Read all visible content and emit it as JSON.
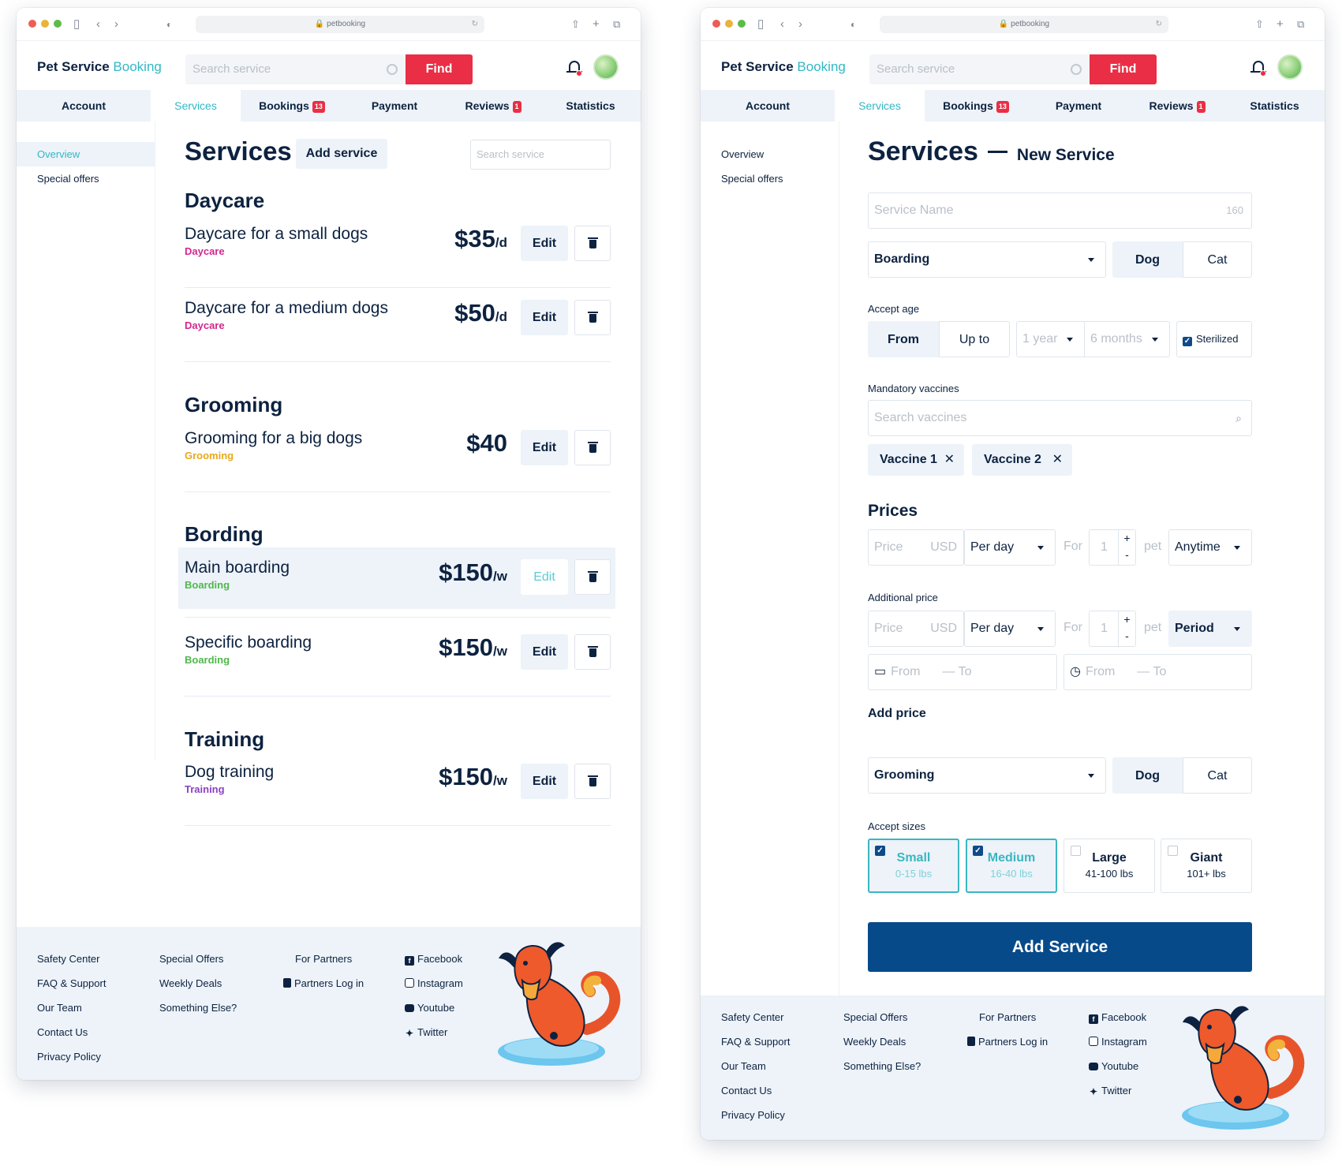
{
  "browser": {
    "url": "petbooking"
  },
  "header": {
    "brand_main": "Pet Service",
    "brand_accent": "Booking",
    "search_placeholder": "Search service",
    "find_label": "Find"
  },
  "tabs": [
    {
      "label": "Account"
    },
    {
      "label": "Services"
    },
    {
      "label": "Bookings",
      "badge": "13"
    },
    {
      "label": "Payment"
    },
    {
      "label": "Reviews",
      "badge": "1"
    },
    {
      "label": "Statistics"
    }
  ],
  "sidebar": {
    "items": [
      {
        "label": "Overview"
      },
      {
        "label": "Special offers"
      }
    ]
  },
  "services_page": {
    "title": "Services",
    "add_service_label": "Add service",
    "search_placeholder": "Search service",
    "edit_label": "Edit",
    "categories": [
      {
        "title": "Daycare",
        "items": [
          {
            "name": "Daycare for a small dogs",
            "tag": "Daycare",
            "tag_color": "#d4278f",
            "price": "$35",
            "unit": "/d"
          },
          {
            "name": "Daycare for a medium dogs",
            "tag": "Daycare",
            "tag_color": "#d4278f",
            "price": "$50",
            "unit": "/d"
          }
        ]
      },
      {
        "title": "Grooming",
        "items": [
          {
            "name": "Grooming for a big dogs",
            "tag": "Grooming",
            "tag_color": "#e7a91c",
            "price": "$40",
            "unit": ""
          }
        ]
      },
      {
        "title": "Bording",
        "items": [
          {
            "name": "Main boarding",
            "tag": "Boarding",
            "tag_color": "#4fb84a",
            "price": "$150",
            "unit": "/w",
            "highlighted": true
          },
          {
            "name": "Specific boarding",
            "tag": "Boarding",
            "tag_color": "#4fb84a",
            "price": "$150",
            "unit": "/w"
          }
        ]
      },
      {
        "title": "Training",
        "items": [
          {
            "name": "Dog training",
            "tag": "Training",
            "tag_color": "#8a3fc4",
            "price": "$150",
            "unit": "/w"
          }
        ]
      }
    ]
  },
  "new_service_page": {
    "title": "Services",
    "subtitle": "New Service",
    "name_placeholder": "Service Name",
    "name_counter": "160",
    "type_select": "Boarding",
    "pet_dog": "Dog",
    "pet_cat": "Cat",
    "accept_age_label": "Accept age",
    "age_from": "From",
    "age_upto": "Up to",
    "age_year": "1 year",
    "age_months": "6 months",
    "sterilized_label": "Sterilized",
    "vaccines_label": "Mandatory vaccines",
    "vaccines_placeholder": "Search vaccines",
    "vaccines": [
      "Vaccine 1",
      "Vaccine 2"
    ],
    "prices_title": "Prices",
    "price_placeholder": "Price",
    "currency": "USD",
    "per_day": "Per day",
    "for_label": "For",
    "qty": "1",
    "pet_label": "pet",
    "anytime": "Anytime",
    "additional_label": "Additional price",
    "period": "Period",
    "from_label": "From",
    "to_label": "To",
    "add_price_label": "Add price",
    "grooming_select": "Grooming",
    "accept_sizes_label": "Accept sizes",
    "sizes": [
      {
        "name": "Small",
        "range": "0-15 lbs",
        "checked": true
      },
      {
        "name": "Medium",
        "range": "16-40 lbs",
        "checked": true
      },
      {
        "name": "Large",
        "range": "41-100 lbs",
        "checked": false
      },
      {
        "name": "Giant",
        "range": "101+ lbs",
        "checked": false
      }
    ],
    "submit_label": "Add Service"
  },
  "footer": {
    "col1": [
      "Safety Center",
      "FAQ & Support",
      "Our Team",
      "Contact Us",
      "Privacy Policy"
    ],
    "col2": [
      "Special Offers",
      "Weekly Deals",
      "Something Else?"
    ],
    "col3": [
      "For Partners",
      "Partners Log in"
    ],
    "social": [
      {
        "label": "Facebook",
        "icon": "facebook-icon"
      },
      {
        "label": "Instagram",
        "icon": "instagram-icon"
      },
      {
        "label": "Youtube",
        "icon": "youtube-icon"
      },
      {
        "label": "Twitter",
        "icon": "twitter-icon"
      }
    ]
  },
  "colors": {
    "navy": "#0d2240",
    "teal": "#33b8c4",
    "red": "#ea2e45",
    "light": "#edf3f9",
    "primary_button": "#074a8a"
  }
}
